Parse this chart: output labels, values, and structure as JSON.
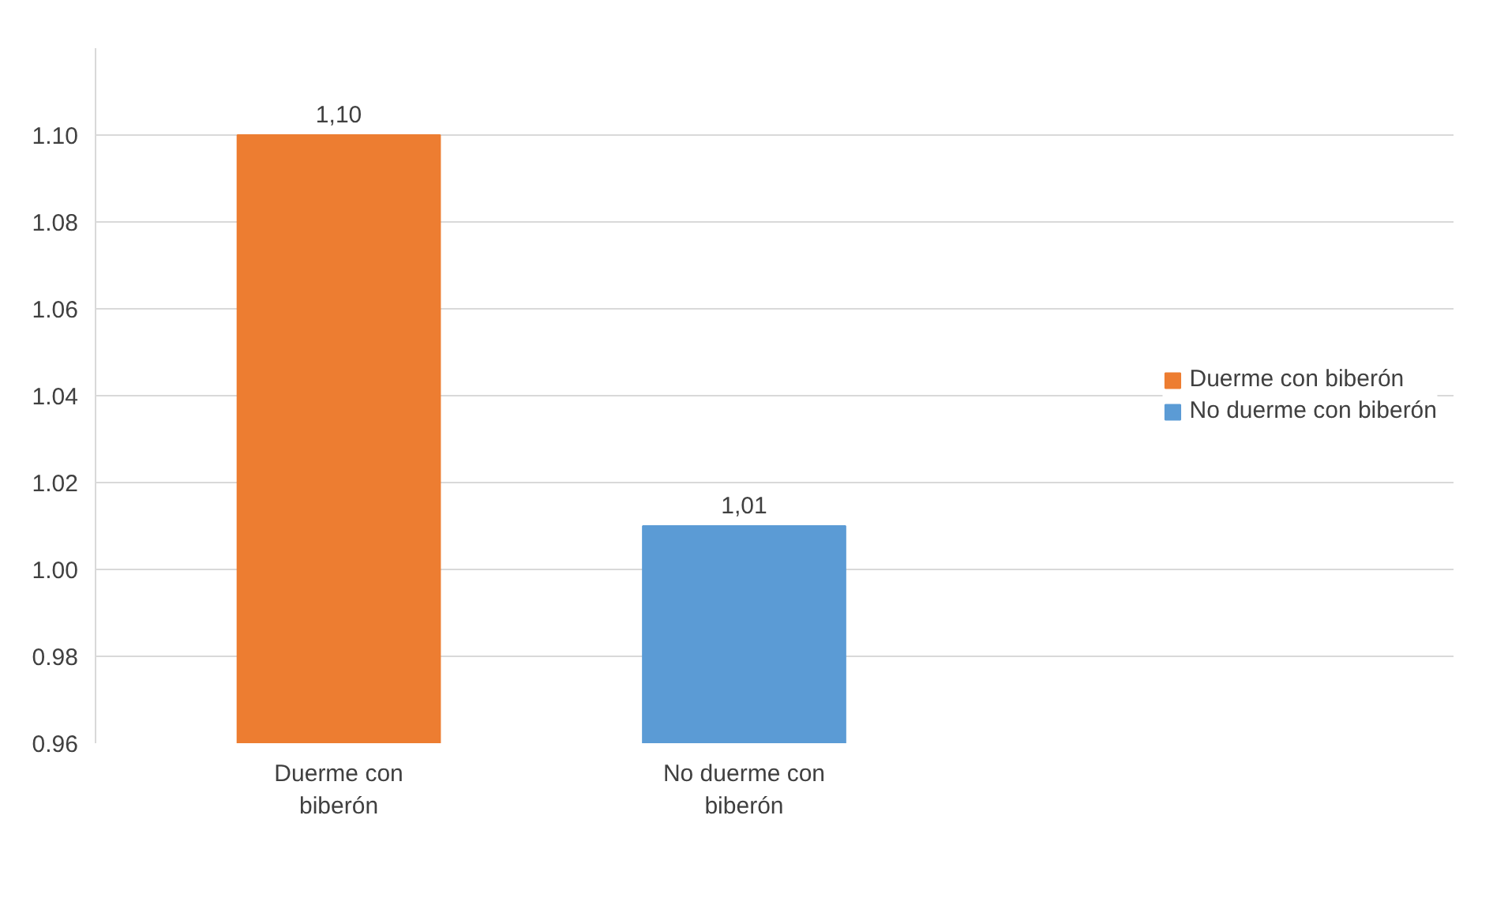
{
  "chart_data": {
    "type": "bar",
    "categories": [
      "Duerme con biberón",
      "No duerme con biberón"
    ],
    "series": [
      {
        "name": "Duerme con biberón",
        "color": "#ed7d31",
        "values": [
          1.1,
          null
        ],
        "value_labels": [
          "1,10",
          null
        ]
      },
      {
        "name": "No duerme con biberón",
        "color": "#5b9bd5",
        "values": [
          null,
          1.01
        ],
        "value_labels": [
          null,
          "1,01"
        ]
      }
    ],
    "ylim": [
      0.96,
      1.12
    ],
    "yticks": [
      0.96,
      0.98,
      {
        "value": 1.0,
        "label": "1.00"
      },
      1.02,
      1.04,
      1.06,
      1.08,
      {
        "value": 1.1,
        "label": "1.10"
      }
    ],
    "grid": "y",
    "legend": "right"
  }
}
